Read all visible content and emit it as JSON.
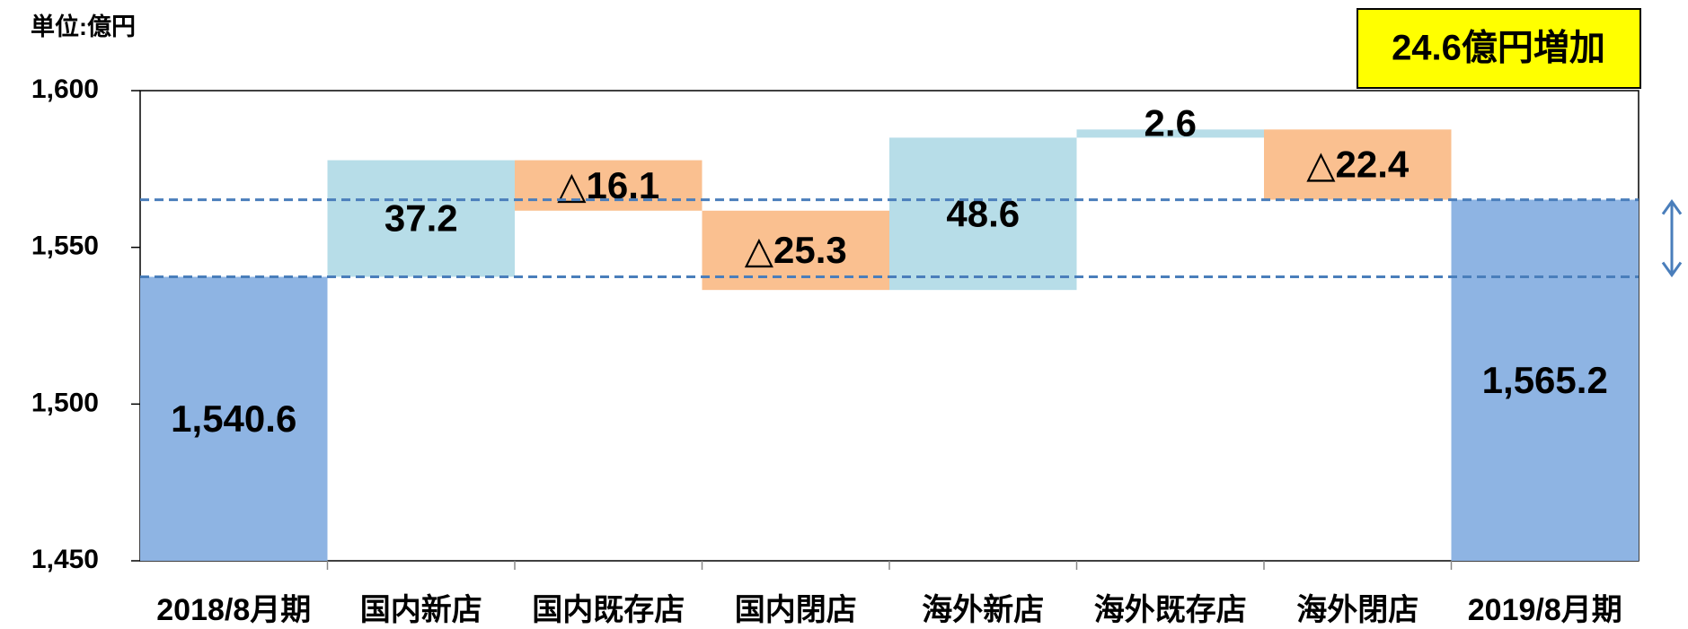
{
  "chart_data": {
    "type": "waterfall",
    "unit_label": "単位:億円",
    "annotation": "24.6億円増加",
    "categories": [
      "2018/8月期",
      "国内新店",
      "国内既存店",
      "国内閉店",
      "海外新店",
      "海外既存店",
      "海外閉店",
      "2019/8月期"
    ],
    "values": [
      1540.6,
      37.2,
      -16.1,
      -25.3,
      48.6,
      2.6,
      -22.4,
      1565.2
    ],
    "value_labels": [
      "1,540.6",
      "37.2",
      "△16.1",
      "△25.3",
      "48.6",
      "2.6",
      "△22.4",
      "1,565.2"
    ],
    "measures": [
      "absolute",
      "relative",
      "relative",
      "relative",
      "relative",
      "relative",
      "relative",
      "absolute"
    ],
    "colors": {
      "total": "#8eb4e3",
      "increase": "#b7dde8",
      "decrease": "#fac090"
    },
    "label_colors": {
      "total": "#000000",
      "increase": "#000000",
      "decrease": "#ff0000"
    },
    "reference_color": "#4a7ebb",
    "ylim": [
      1450,
      1600
    ],
    "yticks": [
      {
        "value": 1450,
        "label": "1,450"
      },
      {
        "value": 1500,
        "label": "1,500"
      },
      {
        "value": 1550,
        "label": "1,550"
      },
      {
        "value": 1600,
        "label": "1,600"
      }
    ]
  }
}
